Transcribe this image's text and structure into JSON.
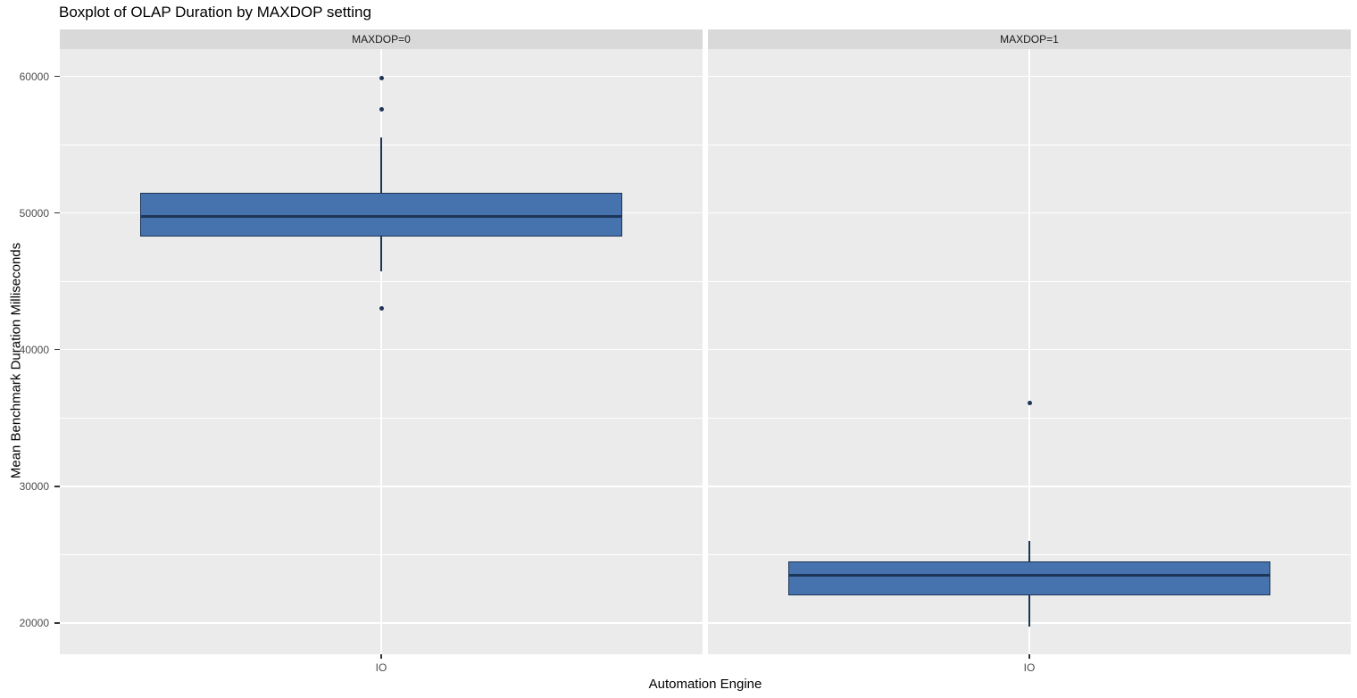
{
  "title": "Boxplot of OLAP Duration by MAXDOP setting",
  "axes": {
    "y_label": "Mean Benchmark Duration Milliseconds",
    "x_label": "Automation Engine",
    "y_tick_labels": [
      "60000",
      "50000",
      "40000",
      "30000",
      "20000"
    ],
    "x_tick_label": "IO"
  },
  "colors": {
    "page_bg": "#ffffff",
    "panel_bg": "#ebebeb",
    "strip_bg": "#d9d9d9",
    "strip_text": "#1a1a1a",
    "grid": "#ffffff",
    "box_fill": "#4673ae",
    "box_stroke": "#1d3557",
    "tick_text": "#4d4d4d",
    "tick_mark": "#333333"
  },
  "chart_data": {
    "type": "boxplot",
    "title": "Boxplot of OLAP Duration by MAXDOP setting",
    "xlabel": "Automation Engine",
    "ylabel": "Mean Benchmark Duration Milliseconds",
    "ylim": [
      17700,
      62000
    ],
    "y_major_ticks": [
      60000,
      50000,
      40000,
      30000,
      20000
    ],
    "y_minor_ticks": [
      55000,
      45000,
      35000,
      25000
    ],
    "grid": true,
    "legend": false,
    "facets": [
      {
        "label": "MAXDOP=0",
        "category": "IO",
        "box": {
          "whisker_low": 45700,
          "q1": 48250,
          "median": 49750,
          "q3": 51500,
          "whisker_high": 55500
        },
        "outliers": [
          59900,
          57600,
          43000
        ]
      },
      {
        "label": "MAXDOP=1",
        "category": "IO",
        "box": {
          "whisker_low": 19700,
          "q1": 22000,
          "median": 23500,
          "q3": 24500,
          "whisker_high": 26000
        },
        "outliers": [
          36100
        ]
      }
    ]
  }
}
